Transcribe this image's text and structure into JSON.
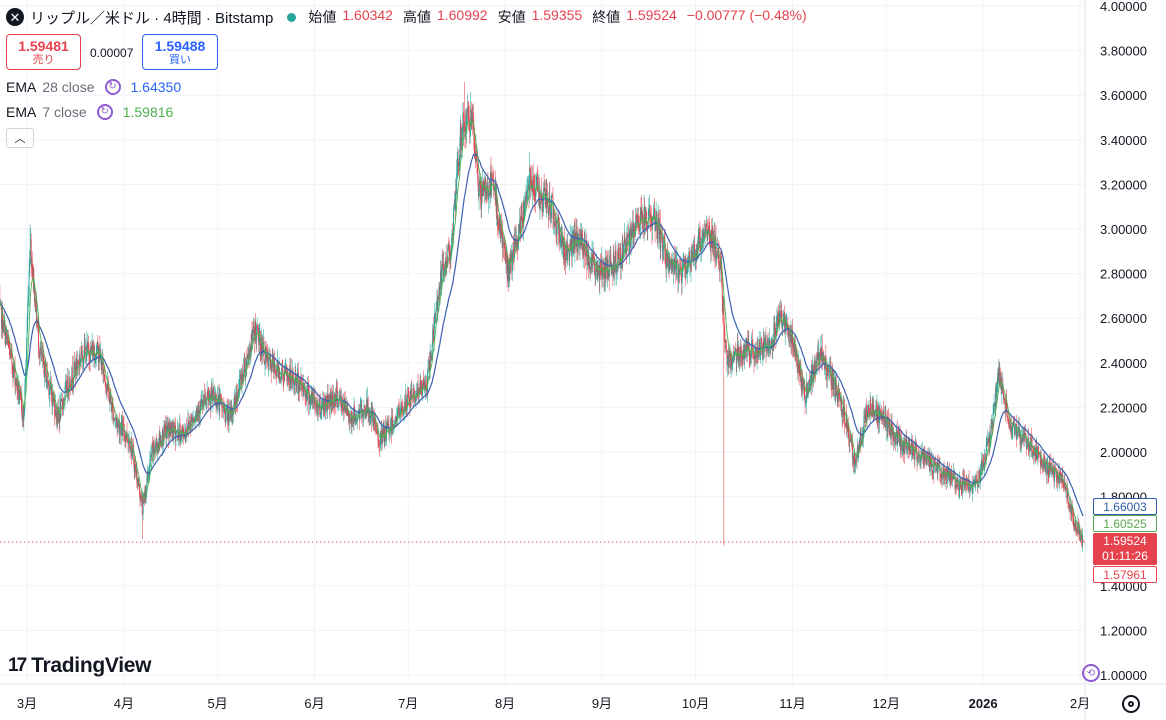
{
  "header": {
    "close_icon": "close-icon",
    "title": "リップル／米ドル · 4時間 · Bitstamp",
    "ohlc": [
      {
        "label": "始値",
        "value": "1.60342"
      },
      {
        "label": "高値",
        "value": "1.60992"
      },
      {
        "label": "安値",
        "value": "1.59355"
      },
      {
        "label": "終値",
        "value": "1.59524"
      }
    ],
    "change": "−0.00777 (−0.48%)"
  },
  "trade": {
    "sell_price": "1.59481",
    "sell_label": "売り",
    "spread": "0.00007",
    "buy_price": "1.59488",
    "buy_label": "買い"
  },
  "indicators": [
    {
      "name": "EMA",
      "params": "28 close",
      "value": "1.64350",
      "color": "#2962ff"
    },
    {
      "name": "EMA",
      "params": "7 close",
      "value": "1.59816",
      "color": "#4caf50"
    }
  ],
  "collapse_icon": "chevron-up-icon",
  "logo": {
    "mark": "17",
    "text": "TradingView"
  },
  "price_tags": {
    "ema28": "1.66003",
    "ema7": "1.60525",
    "last": "1.59524",
    "countdown": "01:11:26",
    "low": "1.57961"
  },
  "colors": {
    "up": "#26a69a",
    "down": "#e5424d",
    "ema28": "#3a5fb0",
    "ema7": "#4caf50",
    "last_line": "#e5424d"
  },
  "chart_data": {
    "type": "candlestick",
    "y_scale": "linear",
    "ylim": [
      0.9,
      4.0
    ],
    "y_ticks": [
      "4.00000",
      "3.80000",
      "3.60000",
      "3.40000",
      "3.20000",
      "3.00000",
      "2.80000",
      "2.60000",
      "2.40000",
      "2.20000",
      "2.00000",
      "1.80000",
      "1.60000",
      "1.40000",
      "1.20000",
      "1.00000"
    ],
    "x_ticks": [
      "3月",
      "4月",
      "5月",
      "6月",
      "7月",
      "8月",
      "9月",
      "10月",
      "11月",
      "12月",
      "2026",
      "2月"
    ],
    "x_tick_dates": [
      "2025-03-01",
      "2025-04-01",
      "2025-05-01",
      "2025-06-01",
      "2025-07-01",
      "2025-08-01",
      "2025-09-01",
      "2025-10-01",
      "2025-11-01",
      "2025-12-01",
      "2026-01-01",
      "2026-02-01"
    ],
    "grid": true,
    "last_price": 1.59524,
    "close_path": [
      [
        "2025-02-20",
        2.65
      ],
      [
        "2025-02-25",
        2.35
      ],
      [
        "2025-02-28",
        2.15
      ],
      [
        "2025-03-02",
        2.95
      ],
      [
        "2025-03-05",
        2.45
      ],
      [
        "2025-03-08",
        2.3
      ],
      [
        "2025-03-11",
        2.15
      ],
      [
        "2025-03-14",
        2.3
      ],
      [
        "2025-03-19",
        2.45
      ],
      [
        "2025-03-24",
        2.45
      ],
      [
        "2025-03-29",
        2.15
      ],
      [
        "2025-04-03",
        2.05
      ],
      [
        "2025-04-07",
        1.75
      ],
      [
        "2025-04-10",
        2.0
      ],
      [
        "2025-04-15",
        2.1
      ],
      [
        "2025-04-20",
        2.08
      ],
      [
        "2025-04-25",
        2.2
      ],
      [
        "2025-04-30",
        2.25
      ],
      [
        "2025-05-05",
        2.15
      ],
      [
        "2025-05-10",
        2.4
      ],
      [
        "2025-05-13",
        2.55
      ],
      [
        "2025-05-17",
        2.4
      ],
      [
        "2025-05-22",
        2.35
      ],
      [
        "2025-05-28",
        2.3
      ],
      [
        "2025-06-02",
        2.2
      ],
      [
        "2025-06-08",
        2.25
      ],
      [
        "2025-06-13",
        2.15
      ],
      [
        "2025-06-18",
        2.2
      ],
      [
        "2025-06-22",
        2.05
      ],
      [
        "2025-06-27",
        2.15
      ],
      [
        "2025-07-02",
        2.25
      ],
      [
        "2025-07-07",
        2.3
      ],
      [
        "2025-07-11",
        2.75
      ],
      [
        "2025-07-15",
        2.95
      ],
      [
        "2025-07-18",
        3.45
      ],
      [
        "2025-07-21",
        3.5
      ],
      [
        "2025-07-24",
        3.15
      ],
      [
        "2025-07-28",
        3.2
      ],
      [
        "2025-08-02",
        2.8
      ],
      [
        "2025-08-06",
        3.0
      ],
      [
        "2025-08-09",
        3.25
      ],
      [
        "2025-08-12",
        3.15
      ],
      [
        "2025-08-16",
        3.1
      ],
      [
        "2025-08-20",
        2.9
      ],
      [
        "2025-08-25",
        2.95
      ],
      [
        "2025-08-31",
        2.8
      ],
      [
        "2025-09-05",
        2.85
      ],
      [
        "2025-09-10",
        2.95
      ],
      [
        "2025-09-13",
        3.05
      ],
      [
        "2025-09-18",
        3.05
      ],
      [
        "2025-09-22",
        2.85
      ],
      [
        "2025-09-26",
        2.8
      ],
      [
        "2025-10-01",
        2.9
      ],
      [
        "2025-10-04",
        3.0
      ],
      [
        "2025-10-07",
        2.95
      ],
      [
        "2025-10-09",
        2.8
      ],
      [
        "2025-10-11",
        2.4
      ],
      [
        "2025-10-15",
        2.45
      ],
      [
        "2025-10-20",
        2.45
      ],
      [
        "2025-10-25",
        2.5
      ],
      [
        "2025-10-28",
        2.62
      ],
      [
        "2025-11-01",
        2.5
      ],
      [
        "2025-11-05",
        2.25
      ],
      [
        "2025-11-10",
        2.45
      ],
      [
        "2025-11-13",
        2.35
      ],
      [
        "2025-11-17",
        2.2
      ],
      [
        "2025-11-21",
        1.95
      ],
      [
        "2025-11-25",
        2.2
      ],
      [
        "2025-11-30",
        2.15
      ],
      [
        "2025-12-05",
        2.05
      ],
      [
        "2025-12-10",
        2.0
      ],
      [
        "2025-12-15",
        1.95
      ],
      [
        "2025-12-20",
        1.9
      ],
      [
        "2025-12-25",
        1.85
      ],
      [
        "2025-12-30",
        1.85
      ],
      [
        "2026-01-03",
        2.05
      ],
      [
        "2026-01-06",
        2.35
      ],
      [
        "2026-01-10",
        2.1
      ],
      [
        "2026-01-15",
        2.05
      ],
      [
        "2026-01-20",
        1.95
      ],
      [
        "2026-01-24",
        1.9
      ],
      [
        "2026-01-27",
        1.85
      ],
      [
        "2026-01-30",
        1.7
      ],
      [
        "2026-02-02",
        1.595
      ]
    ],
    "spikes": [
      {
        "date": "2025-04-07",
        "low": 1.61
      },
      {
        "date": "2025-10-10",
        "low": 1.58
      },
      {
        "date": "2025-03-02",
        "high": 3.02
      },
      {
        "date": "2026-01-06",
        "high": 2.42
      },
      {
        "date": "2025-07-19",
        "high": 3.66
      }
    ]
  }
}
